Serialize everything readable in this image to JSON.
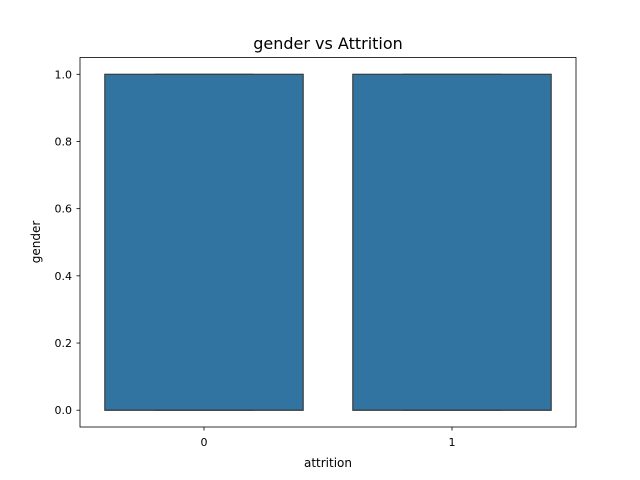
{
  "chart_data": {
    "type": "box",
    "title": "gender vs Attrition",
    "xlabel": "attrition",
    "ylabel": "gender",
    "categories": [
      "0",
      "1"
    ],
    "ylim": [
      -0.05,
      1.05
    ],
    "yticks": [
      0.0,
      0.2,
      0.4,
      0.6,
      0.8,
      1.0
    ],
    "ytick_labels": [
      "0.0",
      "0.2",
      "0.4",
      "0.6",
      "0.8",
      "1.0"
    ],
    "boxes": [
      {
        "category": "0",
        "whisker_low": 0,
        "q1": 0,
        "median": 0,
        "q3": 1,
        "whisker_high": 1
      },
      {
        "category": "1",
        "whisker_low": 0,
        "q1": 0,
        "median": 0,
        "q3": 1,
        "whisker_high": 1
      }
    ],
    "box_color": "#3274a1",
    "edge_color": "#3d3d3d",
    "grid": false
  }
}
